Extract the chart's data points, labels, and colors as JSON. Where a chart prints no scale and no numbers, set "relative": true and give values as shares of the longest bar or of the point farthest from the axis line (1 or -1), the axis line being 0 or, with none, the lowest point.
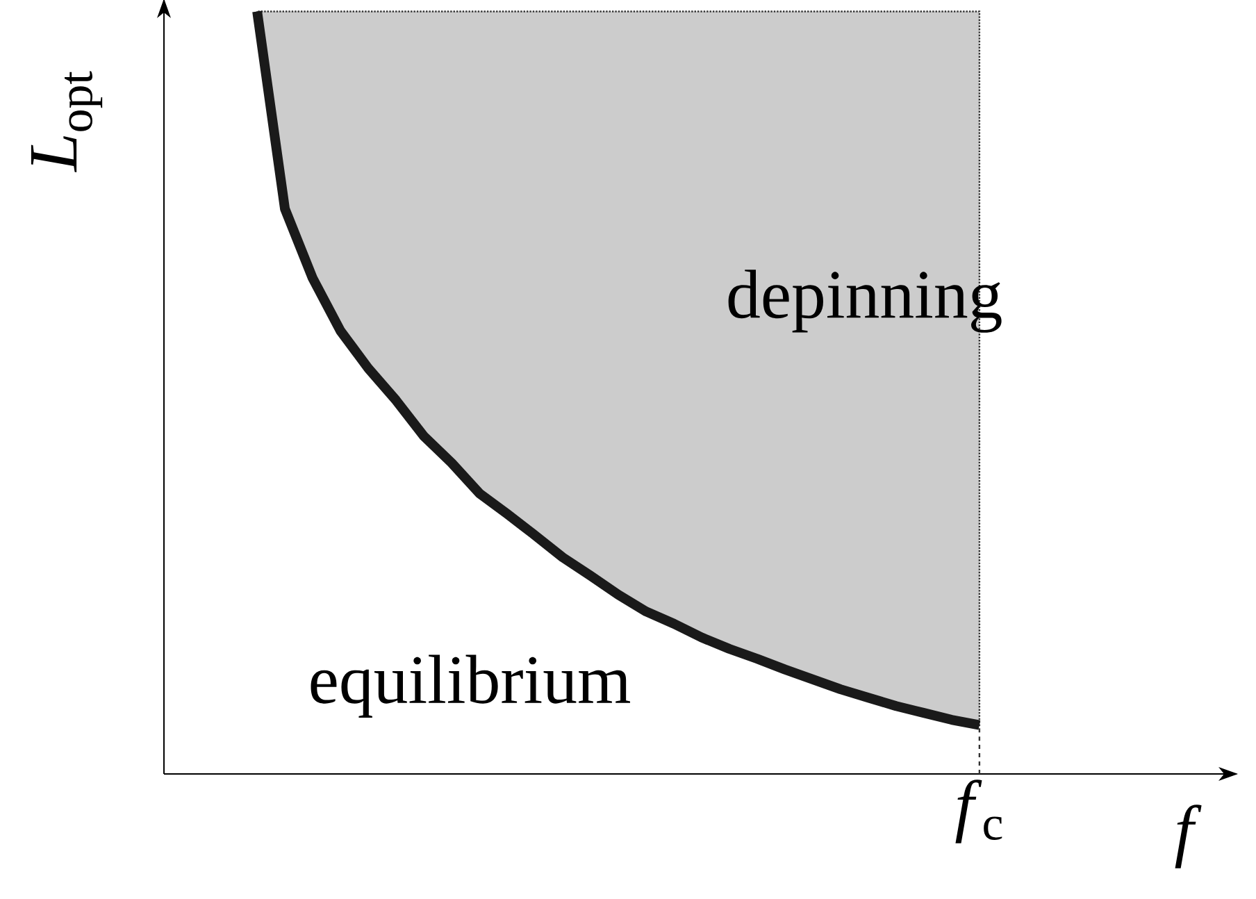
{
  "chart_data": {
    "type": "line",
    "relative": true,
    "xlabel": "*f*",
    "ylabel": "*L*$_{opt}$",
    "categories": [
      null,
      null,
      null,
      null,
      null,
      null,
      null,
      null,
      null,
      null,
      null,
      null,
      null,
      null,
      null,
      null,
      null,
      null,
      null,
      null,
      null,
      null,
      null,
      null,
      null,
      null,
      null
    ],
    "series": [
      {
        "color": "#1a1a1a",
        "values": [
          1.0,
          0.741,
          0.65,
          0.581,
          0.532,
          0.49,
          0.443,
          0.408,
          0.368,
          0.341,
          0.313,
          0.284,
          0.26,
          0.235,
          0.213,
          0.197,
          0.179,
          0.164,
          0.151,
          0.137,
          0.124,
          0.111,
          0.1,
          0.089,
          0.08,
          0.071,
          0.064
        ],
        "lower": [
          1.0,
          0.741,
          0.65,
          0.581,
          0.532,
          0.49,
          0.443,
          0.408,
          0.368,
          0.341,
          0.313,
          0.284,
          0.26,
          0.235,
          0.213,
          0.197,
          0.179,
          0.164,
          0.151,
          0.137,
          0.124,
          0.111,
          0.1,
          0.089,
          0.08,
          0.071,
          0.064
        ],
        "upper": [
          1,
          1,
          1,
          1,
          1,
          1,
          1,
          1,
          1,
          1,
          1,
          1,
          1,
          1,
          1,
          1,
          1,
          1,
          1,
          1,
          1,
          1,
          1,
          1,
          1,
          1,
          1
        ]
      }
    ],
    "annotations": [
      "depinning",
      "equilibrium",
      "*f*$_{c}$"
    ],
    "marker": "none",
    "line_style": "solid"
  }
}
